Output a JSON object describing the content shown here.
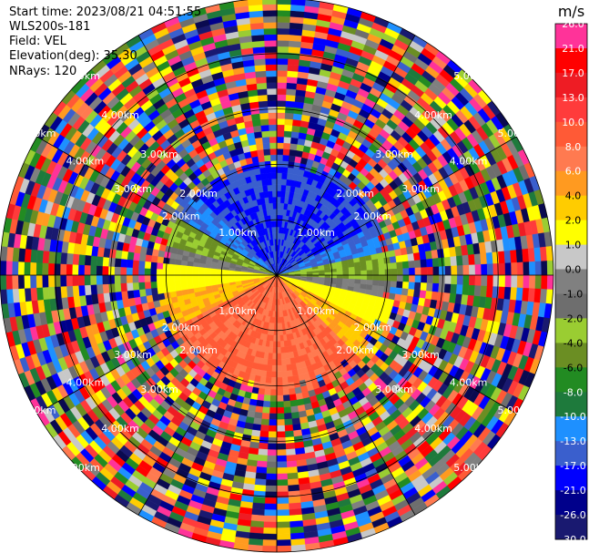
{
  "header": {
    "start_time": "Start time: 2023/08/21 04:51:55",
    "instrument": "WLS200s-181",
    "field": "Field: VEL",
    "elevation": "Elevation(deg): 35.30",
    "nrays": "NRays: 120"
  },
  "chart_data": {
    "type": "heatmap",
    "projection": "polar",
    "field": "VEL",
    "units": "m/s",
    "nrays": 120,
    "range_rings_km": [
      1.0,
      2.0,
      3.0,
      4.0,
      5.0
    ],
    "ring_labels": [
      "1.00km",
      "2.00km",
      "3.00km",
      "4.00km",
      "5.00km"
    ],
    "valid_range_km": 2.0,
    "max_range_km": 5.0,
    "colorbar": {
      "label": "m/s",
      "ticks": [
        "26.0",
        "21.0",
        "17.0",
        "13.0",
        "10.0",
        "8.0",
        "6.0",
        "4.0",
        "2.0",
        "1.0",
        "0.0",
        "-1.0",
        "-2.0",
        "-4.0",
        "-6.0",
        "-8.0",
        "-10.0",
        "-13.0",
        "-17.0",
        "-21.0",
        "-26.0",
        "-30.0"
      ],
      "colors": [
        "#ff3399",
        "#ff0000",
        "#ee1c24",
        "#ff3b3b",
        "#ff5a36",
        "#ff7a50",
        "#ff9a20",
        "#ffcc00",
        "#ffff00",
        "#c8c8c8",
        "#808080",
        "#6e6e6e",
        "#9acd32",
        "#6b8e23",
        "#228b22",
        "#1e7a3c",
        "#1e90ff",
        "#3a5fcd",
        "#0000ff",
        "#00008b",
        "#191970",
        "#0a0a50"
      ]
    }
  }
}
